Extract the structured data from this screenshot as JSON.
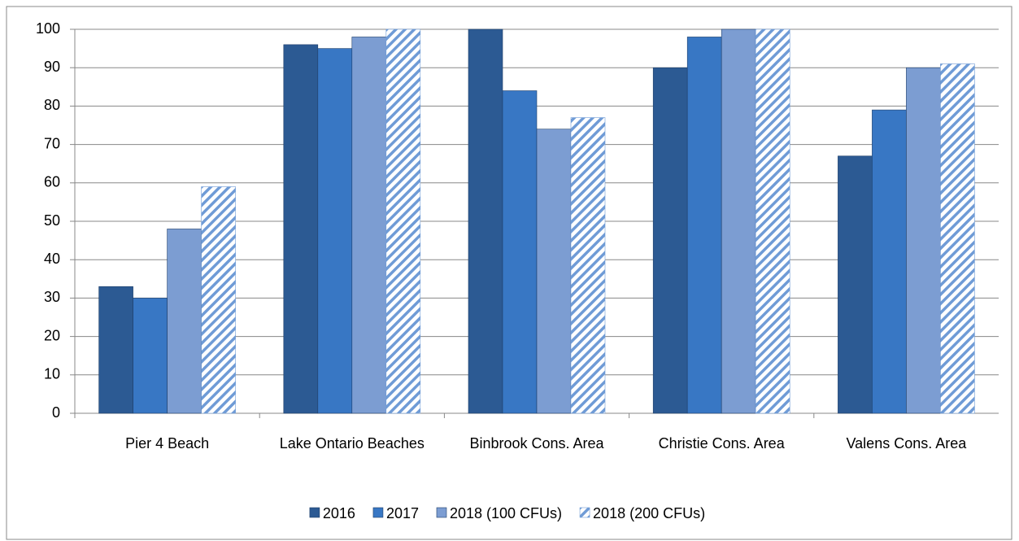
{
  "chart_data": {
    "type": "bar",
    "categories": [
      "Pier 4 Beach",
      "Lake Ontario Beaches",
      "Binbrook Cons. Area",
      "Christie Cons. Area",
      "Valens Cons. Area"
    ],
    "series": [
      {
        "name": "2016",
        "color": "#2c5a93",
        "values": [
          33,
          96,
          100,
          90,
          67
        ]
      },
      {
        "name": "2017",
        "color": "#3877c4",
        "values": [
          30,
          95,
          84,
          98,
          79
        ]
      },
      {
        "name": "2018 (100 CFUs)",
        "color": "#7c9dd2",
        "values": [
          48,
          98,
          74,
          100,
          90
        ]
      },
      {
        "name": "2018 (200 CFUs)",
        "color": "#6f9bd6",
        "pattern": "diagonal",
        "values": [
          59,
          100,
          77,
          100,
          91
        ]
      }
    ],
    "ylim": [
      0,
      100
    ],
    "yticks": [
      0,
      10,
      20,
      30,
      40,
      50,
      60,
      70,
      80,
      90,
      100
    ],
    "grid": true,
    "legend": "bottom"
  }
}
